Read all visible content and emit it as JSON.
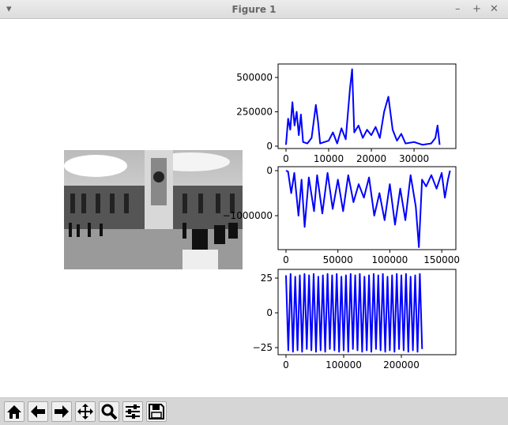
{
  "window": {
    "title": "Figure 1"
  },
  "chart_data": [
    {
      "type": "line",
      "color": "#0000ff",
      "x": [
        0,
        500,
        1000,
        1500,
        2000,
        2500,
        3000,
        3500,
        4000,
        5000,
        6000,
        7000,
        7500,
        8000,
        10000,
        11000,
        12000,
        13000,
        14000,
        15000,
        15500,
        16000,
        17000,
        18000,
        19000,
        20000,
        21000,
        22000,
        23000,
        24000,
        25000,
        26000,
        27000,
        28000,
        30000,
        32000,
        34000,
        35000,
        35500,
        36000
      ],
      "values": [
        10000,
        200000,
        120000,
        320000,
        150000,
        250000,
        80000,
        230000,
        30000,
        20000,
        60000,
        300000,
        180000,
        20000,
        40000,
        100000,
        20000,
        130000,
        50000,
        420000,
        560000,
        100000,
        150000,
        60000,
        120000,
        80000,
        140000,
        60000,
        250000,
        360000,
        120000,
        40000,
        90000,
        20000,
        30000,
        10000,
        20000,
        60000,
        150000,
        10000
      ],
      "xlim": [
        -1850,
        39800
      ],
      "ylim": [
        -17000,
        598000
      ],
      "xticks": [
        0,
        10000,
        20000,
        30000
      ],
      "yticks": [
        0,
        250000,
        500000
      ]
    },
    {
      "type": "line",
      "color": "#0000ff",
      "x": [
        0,
        2000,
        5000,
        8000,
        12000,
        15000,
        18000,
        22000,
        27000,
        30000,
        35000,
        40000,
        45000,
        50000,
        55000,
        60000,
        65000,
        70000,
        75000,
        80000,
        85000,
        90000,
        95000,
        100000,
        105000,
        110000,
        115000,
        120000,
        125000,
        128000,
        131000,
        135000,
        140000,
        145000,
        150000,
        153000,
        156000,
        158000
      ],
      "values": [
        0,
        -20000,
        -500000,
        -50000,
        -1000000,
        -200000,
        -1250000,
        -150000,
        -900000,
        -100000,
        -950000,
        -50000,
        -850000,
        -200000,
        -900000,
        -100000,
        -700000,
        -300000,
        -600000,
        -150000,
        -1000000,
        -500000,
        -1100000,
        -300000,
        -1200000,
        -400000,
        -1100000,
        -100000,
        -800000,
        -1700000,
        -200000,
        -350000,
        -100000,
        -400000,
        -50000,
        -600000,
        -200000,
        0
      ],
      "xlim": [
        -7600,
        163600
      ],
      "ylim": [
        -1754000,
        88000
      ],
      "xticks": [
        0,
        50000,
        100000,
        150000
      ],
      "yticks": [
        {
          "value": -1000000,
          "label": "−1000000"
        },
        0
      ]
    },
    {
      "type": "line",
      "color": "#0000ff",
      "x": [
        0,
        4000,
        8000,
        12000,
        16000,
        20000,
        24000,
        28000,
        32000,
        36000,
        40000,
        44000,
        48000,
        52000,
        56000,
        60000,
        64000,
        68000,
        72000,
        76000,
        80000,
        84000,
        88000,
        92000,
        96000,
        100000,
        104000,
        108000,
        112000,
        116000,
        120000,
        124000,
        128000,
        132000,
        136000,
        140000,
        144000,
        148000,
        152000,
        156000,
        160000,
        164000,
        168000,
        172000,
        176000,
        180000,
        184000,
        188000,
        192000,
        196000,
        200000,
        204000,
        208000,
        212000,
        216000,
        220000,
        224000,
        228000,
        232000,
        236000
      ],
      "values": [
        27,
        -27,
        28,
        -28,
        26,
        -27,
        27,
        -28,
        28,
        -26,
        27,
        -27,
        28,
        -28,
        26,
        -27,
        27,
        -28,
        28,
        -26,
        27,
        -27,
        28,
        -28,
        26,
        -27,
        27,
        -28,
        28,
        -26,
        27,
        -27,
        28,
        -28,
        26,
        -27,
        27,
        -28,
        28,
        -26,
        27,
        -27,
        28,
        -28,
        26,
        -27,
        27,
        -28,
        28,
        -26,
        27,
        -27,
        28,
        -28,
        26,
        -27,
        27,
        -28,
        28,
        -26
      ],
      "xlim": [
        -13700,
        294500
      ],
      "ylim": [
        -30.1,
        31.25
      ],
      "xticks": [
        0,
        100000,
        200000
      ],
      "yticks": [
        {
          "value": -25,
          "label": "−25"
        },
        0,
        25
      ]
    }
  ]
}
